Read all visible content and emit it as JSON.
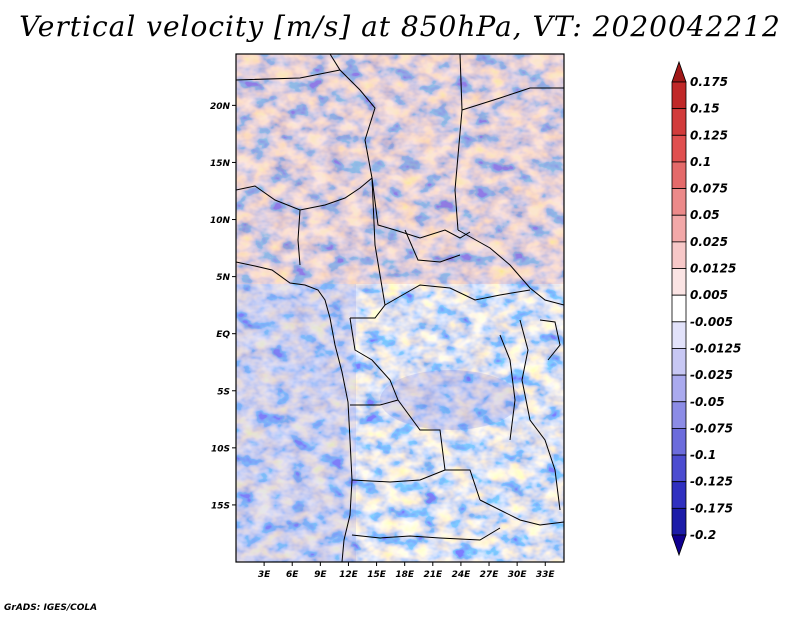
{
  "title": "Vertical velocity [m/s] at 850hPa, VT: 2020042212",
  "credit": "GrADS: IGES/COLA",
  "chart_data": {
    "type": "heatmap",
    "variable": "Vertical velocity",
    "units": "m/s",
    "level": "850hPa",
    "valid_time": "2020042212",
    "lon_range": [
      0,
      35
    ],
    "lat_range": [
      -20,
      24.5
    ],
    "x_ticks": [
      "3E",
      "6E",
      "9E",
      "12E",
      "15E",
      "18E",
      "21E",
      "24E",
      "27E",
      "30E",
      "33E"
    ],
    "x_tick_values": [
      3,
      6,
      9,
      12,
      15,
      18,
      21,
      24,
      27,
      30,
      33
    ],
    "y_ticks": [
      "20N",
      "15N",
      "10N",
      "5N",
      "EQ",
      "5S",
      "10S",
      "15S"
    ],
    "y_tick_values": [
      20,
      15,
      10,
      5,
      0,
      -5,
      -10,
      -15
    ],
    "colorbar": {
      "levels": [
        "0.175",
        "0.15",
        "0.125",
        "0.1",
        "0.075",
        "0.05",
        "0.025",
        "0.0125",
        "0.005",
        "-0.005",
        "-0.0125",
        "-0.025",
        "-0.05",
        "-0.075",
        "-0.1",
        "-0.125",
        "-0.175",
        "-0.2"
      ],
      "colors": [
        "#a01818",
        "#c02828",
        "#d23c3c",
        "#e05050",
        "#e46a6a",
        "#ec8a8a",
        "#f2a8a8",
        "#f7c8c8",
        "#fbe4e4",
        "#ffffff",
        "#e2e2fa",
        "#c8c8f4",
        "#aaaaee",
        "#8c8ce6",
        "#6c6cdc",
        "#4c4cd0",
        "#3030c0",
        "#1c1ca8",
        "#100090"
      ]
    }
  }
}
